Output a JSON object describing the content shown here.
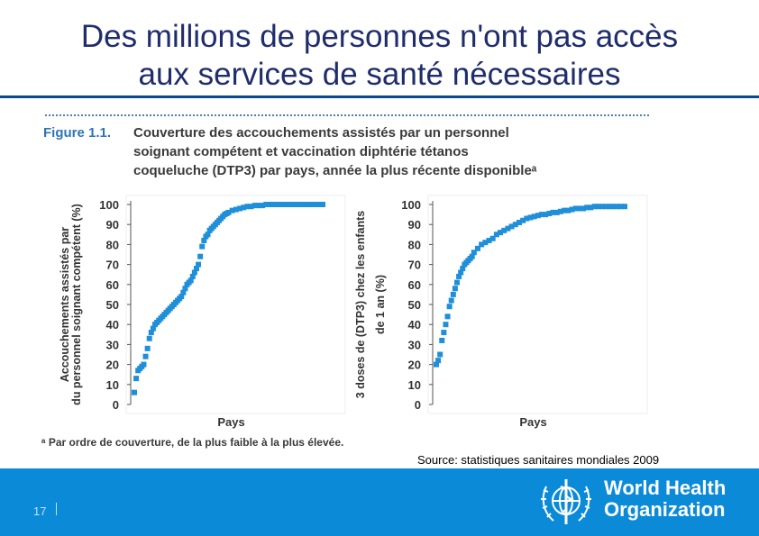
{
  "slide": {
    "title_line1": "Des millions de personnes n'ont pas accès",
    "title_line2": "aux services de santé nécessaires",
    "figure_label": "Figure 1.1.",
    "figure_caption": [
      "Couverture des accouchements assistés par un personnel",
      "soignant compétent et vaccination diphtérie tétanos",
      "coqueluche (DTP3) par pays, année la plus récente disponibleᵃ"
    ],
    "footnote": "ᵃ  Par ordre de couverture, de la plus faible à la plus élevée.",
    "source": "Source: statistiques sanitaires mondiales 2009",
    "page_number": "17",
    "org_name_line1": "World Health",
    "org_name_line2": "Organization",
    "accent_color": "#0b8ad8",
    "marker_color": "#1e8fd8"
  },
  "chart_data": [
    {
      "type": "scatter",
      "title": "",
      "xlabel": "Pays",
      "ylabel_lines": [
        "Accouchements assistés par",
        "du personnel soignant compétent (%)"
      ],
      "ylim": [
        0,
        100
      ],
      "yticks": [
        0,
        10,
        20,
        30,
        40,
        50,
        60,
        70,
        80,
        90,
        100
      ],
      "x": [
        0,
        0.01,
        0.02,
        0.03,
        0.04,
        0.05,
        0.06,
        0.07,
        0.08,
        0.09,
        0.1,
        0.11,
        0.12,
        0.13,
        0.14,
        0.15,
        0.16,
        0.17,
        0.18,
        0.19,
        0.2,
        0.21,
        0.22,
        0.23,
        0.24,
        0.25,
        0.26,
        0.27,
        0.28,
        0.29,
        0.3,
        0.31,
        0.32,
        0.33,
        0.34,
        0.35,
        0.36,
        0.37,
        0.38,
        0.39,
        0.4,
        0.41,
        0.42,
        0.43,
        0.44,
        0.45,
        0.46,
        0.47,
        0.48,
        0.49,
        0.5,
        0.52,
        0.54,
        0.56,
        0.58,
        0.6,
        0.62,
        0.64,
        0.66,
        0.68,
        0.7,
        0.72,
        0.74,
        0.76,
        0.78,
        0.8,
        0.82,
        0.84,
        0.86,
        0.88,
        0.9,
        0.92,
        0.94,
        0.96,
        0.98,
        1.0
      ],
      "values": [
        6,
        13,
        17,
        18,
        19,
        20,
        24,
        28,
        33,
        36,
        38,
        40,
        41,
        42,
        43,
        44,
        45,
        46,
        47,
        48,
        49,
        50,
        51,
        52,
        53,
        54,
        56,
        58,
        60,
        61,
        62,
        64,
        66,
        68,
        70,
        74,
        79,
        82,
        84,
        85,
        87,
        88,
        89,
        90,
        91,
        92,
        93,
        94,
        95,
        95.5,
        96,
        97,
        97.5,
        98,
        98.5,
        99,
        99,
        99.5,
        99.5,
        99.5,
        100,
        100,
        100,
        100,
        100,
        100,
        100,
        100,
        100,
        100,
        100,
        100,
        100,
        100,
        100,
        100
      ]
    },
    {
      "type": "scatter",
      "title": "",
      "xlabel": "Pays",
      "ylabel_lines": [
        "3 doses de (DTP3) chez les enfants",
        "de 1 an (%)"
      ],
      "ylim": [
        0,
        100
      ],
      "yticks": [
        0,
        10,
        20,
        30,
        40,
        50,
        60,
        70,
        80,
        90,
        100
      ],
      "x": [
        0,
        0.01,
        0.02,
        0.03,
        0.04,
        0.05,
        0.06,
        0.07,
        0.08,
        0.09,
        0.1,
        0.11,
        0.12,
        0.13,
        0.14,
        0.15,
        0.16,
        0.17,
        0.18,
        0.19,
        0.2,
        0.22,
        0.24,
        0.26,
        0.28,
        0.3,
        0.32,
        0.34,
        0.36,
        0.38,
        0.4,
        0.42,
        0.44,
        0.46,
        0.48,
        0.5,
        0.52,
        0.54,
        0.56,
        0.58,
        0.6,
        0.62,
        0.64,
        0.66,
        0.68,
        0.7,
        0.72,
        0.74,
        0.76,
        0.78,
        0.8,
        0.82,
        0.84,
        0.86,
        0.88,
        0.9,
        0.92,
        0.94,
        0.96,
        0.98,
        1.0
      ],
      "values": [
        20,
        22,
        25,
        32,
        36,
        40,
        44,
        49,
        52,
        55,
        58,
        61,
        64,
        66,
        68,
        70,
        71,
        72,
        73,
        74,
        76,
        78,
        80,
        81,
        82,
        83,
        85,
        86,
        87,
        88,
        89,
        90,
        91,
        92,
        93,
        93.5,
        94,
        94.5,
        95,
        95,
        95.5,
        96,
        96,
        96.5,
        97,
        97,
        97.5,
        98,
        98,
        98,
        98.5,
        98.5,
        99,
        99,
        99,
        99,
        99,
        99,
        99,
        99,
        99
      ]
    }
  ]
}
